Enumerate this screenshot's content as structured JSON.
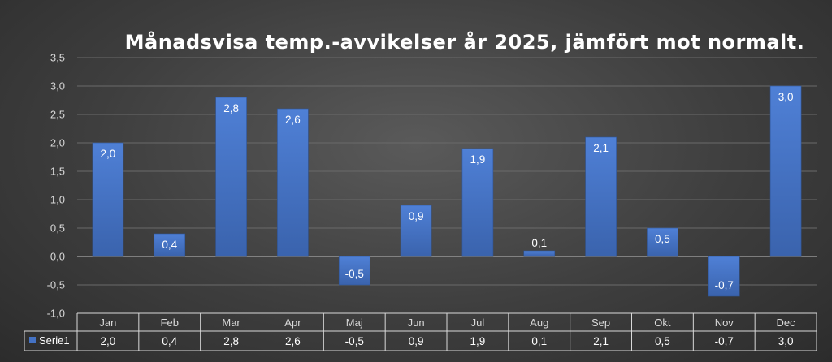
{
  "chart_data": {
    "type": "bar",
    "title": "Månadsvisa temp.-avvikelser år 2025, jämfört mot normalt.",
    "xlabel": "",
    "ylabel": "",
    "categories": [
      "Jan",
      "Feb",
      "Mar",
      "Apr",
      "Maj",
      "Jun",
      "Jul",
      "Aug",
      "Sep",
      "Okt",
      "Nov",
      "Dec"
    ],
    "series": [
      {
        "name": "Serie1",
        "values": [
          2.0,
          0.4,
          2.8,
          2.6,
          -0.5,
          0.9,
          1.9,
          0.1,
          2.1,
          0.5,
          -0.7,
          3.0
        ],
        "labels": [
          "2,0",
          "0,4",
          "2,8",
          "2,6",
          "-0,5",
          "0,9",
          "1,9",
          "0,1",
          "2,1",
          "0,5",
          "-0,7",
          "3,0"
        ]
      }
    ],
    "ylim": [
      -1.0,
      3.5
    ],
    "yticks": [
      3.5,
      3.0,
      2.5,
      2.0,
      1.5,
      1.0,
      0.5,
      0.0,
      -0.5,
      -1.0
    ],
    "ytick_labels": [
      "3,5",
      "3,0",
      "2,5",
      "2,0",
      "1,5",
      "1,0",
      "0,5",
      "0,0",
      "-0,5",
      "-1,0"
    ],
    "grid": true,
    "legend": "data-table",
    "bar_color": "#4472c4"
  }
}
